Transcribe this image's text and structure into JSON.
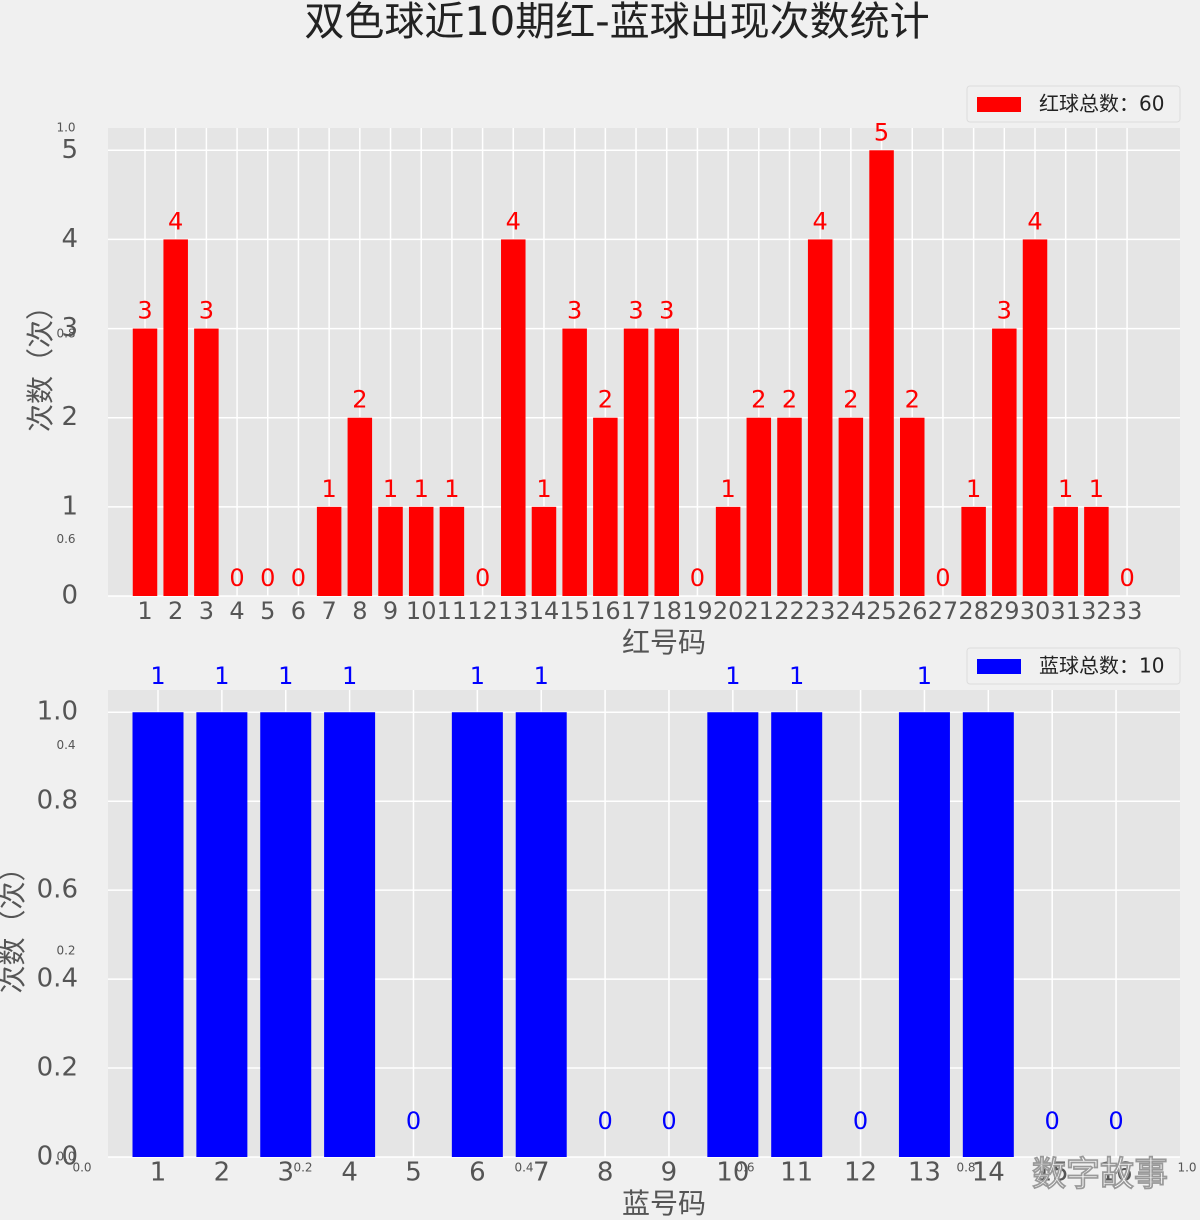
{
  "title": "双色球近10期红-蓝球出现次数统计",
  "watermark": "数字故事",
  "chart_data": [
    {
      "type": "bar",
      "categories": [
        "1",
        "2",
        "3",
        "4",
        "5",
        "6",
        "7",
        "8",
        "9",
        "10",
        "11",
        "12",
        "13",
        "14",
        "15",
        "16",
        "17",
        "18",
        "19",
        "20",
        "21",
        "22",
        "23",
        "24",
        "25",
        "26",
        "27",
        "28",
        "29",
        "30",
        "31",
        "32",
        "33"
      ],
      "series": [
        {
          "name": "红球总数：60",
          "color": "#ff0000",
          "values": [
            3,
            4,
            3,
            0,
            0,
            0,
            1,
            2,
            1,
            1,
            1,
            0,
            4,
            1,
            3,
            2,
            3,
            3,
            0,
            1,
            2,
            2,
            4,
            2,
            5,
            2,
            0,
            1,
            3,
            4,
            1,
            1,
            0
          ]
        }
      ],
      "xlabel": "红号码",
      "ylabel": "次数（次）",
      "ylim": [
        0,
        5.25
      ],
      "yticks": [
        0,
        1,
        2,
        3,
        4,
        5
      ],
      "grid": true,
      "legend": "upper right"
    },
    {
      "type": "bar",
      "categories": [
        "1",
        "2",
        "3",
        "4",
        "5",
        "6",
        "7",
        "8",
        "9",
        "10",
        "11",
        "12",
        "13",
        "14",
        "15",
        "16"
      ],
      "series": [
        {
          "name": "蓝球总数：10",
          "color": "#0000ff",
          "values": [
            1,
            1,
            1,
            1,
            0,
            1,
            1,
            0,
            0,
            1,
            1,
            0,
            1,
            1,
            0,
            0
          ]
        }
      ],
      "xlabel": "蓝号码",
      "ylabel": "次数（次）",
      "ylim": [
        0,
        1.05
      ],
      "yticks": [
        {
          "value": 0,
          "label": "0.0"
        },
        0.2,
        0.4,
        0.6,
        0.8,
        {
          "value": 1,
          "label": "1.0"
        }
      ],
      "grid": true,
      "legend": "upper right"
    },
    {
      "type": "blank",
      "xlim": [
        0,
        1
      ],
      "ylim": [
        0,
        1
      ],
      "xticks": [
        {
          "value": 0,
          "label": "0.0"
        },
        0.2,
        0.4,
        0.6,
        0.8,
        {
          "value": 1,
          "label": "1.0"
        }
      ],
      "yticks": [
        {
          "value": 0,
          "label": "0.0"
        },
        0.2,
        0.4,
        0.6,
        0.8,
        {
          "value": 1,
          "label": "1.0"
        }
      ]
    }
  ]
}
